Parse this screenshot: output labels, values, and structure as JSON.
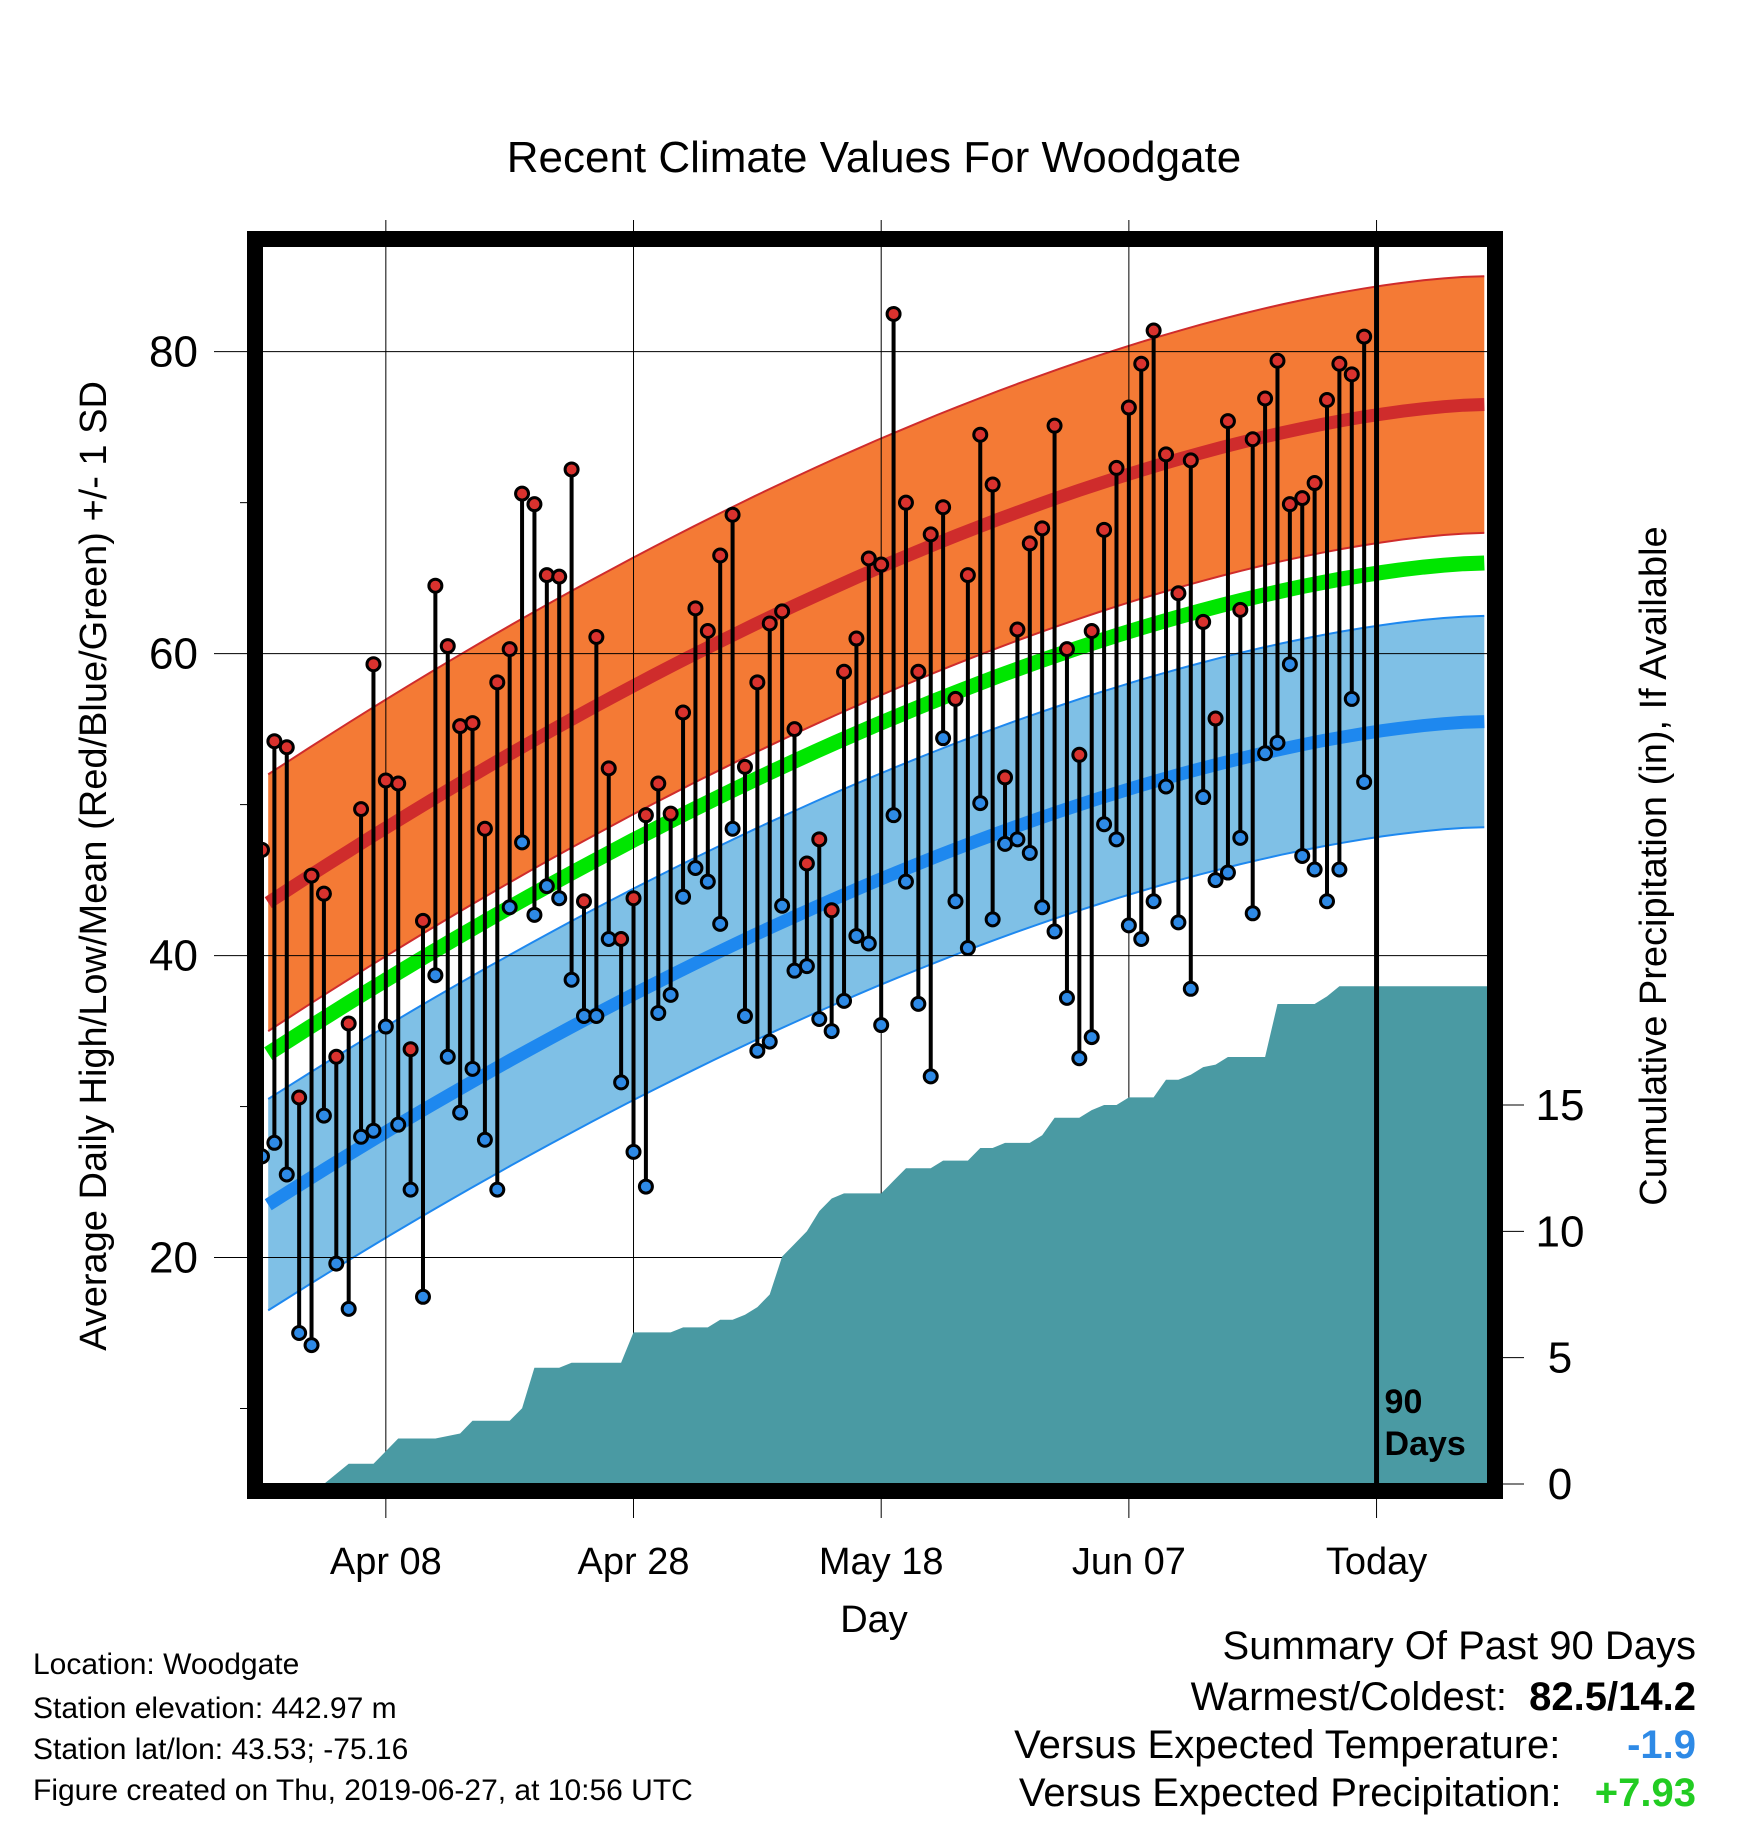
{
  "chart_data": {
    "type": "line",
    "title": "Recent Climate Values For Woodgate",
    "xlabel": "Day",
    "ylabel_left": "Average Daily High/Low/Mean (Red/Blue/Green) +/- 1 SD",
    "ylabel_right": "Cumulative Precipitation (in), If Available",
    "x_tick_labels": [
      "Apr 08",
      "Apr 28",
      "May 18",
      "Jun 07",
      "Today"
    ],
    "x_tick_days": [
      10,
      30,
      50,
      70,
      90
    ],
    "xlim": [
      0,
      99
    ],
    "ylim_left": [
      5,
      87
    ],
    "y_ticks_left": [
      20,
      40,
      60,
      80
    ],
    "ylim_right": [
      0,
      49
    ],
    "y_ticks_right": [
      0,
      5,
      10,
      15
    ],
    "grid": true,
    "today_marker": {
      "day": 90,
      "label_line1": "90",
      "label_line2": "Days"
    },
    "normal_high": {
      "start": 43.5,
      "end": 76.5,
      "sd": 8.5,
      "color": "#cf2c2c",
      "band_color": "#f47a35"
    },
    "normal_low": {
      "start": 23.5,
      "end": 55.5,
      "sd": 7,
      "color": "#1e88ef",
      "band_color": "#7fc0e6"
    },
    "normal_mean": {
      "start": 33.5,
      "end": 66,
      "color": "#00e600"
    },
    "daily_highs": [
      47.0,
      54.2,
      53.8,
      30.6,
      45.3,
      44.1,
      33.3,
      35.5,
      49.7,
      59.3,
      51.6,
      51.4,
      33.8,
      42.3,
      64.5,
      60.5,
      55.2,
      55.4,
      48.4,
      58.1,
      60.3,
      70.6,
      69.9,
      65.2,
      65.1,
      72.2,
      43.6,
      61.1,
      52.4,
      41.1,
      43.8,
      49.3,
      51.4,
      49.4,
      56.1,
      63.0,
      61.5,
      66.5,
      69.2,
      52.5,
      58.1,
      62.0,
      62.8,
      55.0,
      46.1,
      47.7,
      43.0,
      58.8,
      61.0,
      66.3,
      65.9,
      82.5,
      70.0,
      58.8,
      67.9,
      69.7,
      57.0,
      65.2,
      74.5,
      71.2,
      51.8,
      61.6,
      67.3,
      68.3,
      75.1,
      60.3,
      53.3,
      61.5,
      68.2,
      72.3,
      76.3,
      79.2,
      81.4,
      73.2,
      64.0,
      72.8,
      62.1,
      55.7,
      75.4,
      62.9,
      74.2,
      76.9,
      79.4,
      69.9,
      70.3,
      71.3,
      76.8,
      79.2,
      78.5,
      81.0
    ],
    "daily_lows": [
      26.7,
      27.6,
      25.5,
      15.0,
      14.2,
      29.4,
      19.6,
      16.6,
      28.0,
      28.4,
      35.3,
      28.8,
      24.5,
      17.4,
      38.7,
      33.3,
      29.6,
      32.5,
      27.8,
      24.5,
      43.2,
      47.5,
      42.7,
      44.6,
      43.8,
      38.4,
      36.0,
      36.0,
      41.1,
      31.6,
      27.0,
      24.7,
      36.2,
      37.4,
      43.9,
      45.8,
      44.9,
      42.1,
      48.4,
      36.0,
      33.7,
      34.3,
      43.3,
      39.0,
      39.3,
      35.8,
      35.0,
      37.0,
      41.3,
      40.8,
      35.4,
      49.3,
      44.9,
      36.8,
      32.0,
      54.4,
      43.6,
      40.5,
      50.1,
      42.4,
      47.4,
      47.7,
      46.8,
      43.2,
      41.6,
      37.2,
      33.2,
      34.6,
      48.7,
      47.7,
      42.0,
      41.1,
      43.6,
      51.2,
      42.2,
      37.8,
      50.5,
      45.0,
      45.5,
      47.8,
      42.8,
      53.4,
      54.1,
      59.3,
      46.6,
      45.7,
      43.6,
      45.7,
      57.0,
      51.5
    ],
    "cumulative_precip": [
      0.0,
      0.0,
      0.0,
      0.0,
      0.0,
      0.0,
      0.4,
      0.8,
      0.8,
      0.8,
      1.3,
      1.8,
      1.8,
      1.8,
      1.8,
      1.9,
      2.0,
      2.5,
      2.5,
      2.5,
      2.5,
      3.0,
      4.6,
      4.6,
      4.6,
      4.8,
      4.8,
      4.8,
      4.8,
      4.8,
      6.0,
      6.0,
      6.0,
      6.0,
      6.2,
      6.2,
      6.2,
      6.5,
      6.5,
      6.7,
      7.0,
      7.5,
      9.0,
      9.5,
      10.0,
      10.8,
      11.3,
      11.5,
      11.5,
      11.5,
      11.5,
      12.0,
      12.5,
      12.5,
      12.5,
      12.8,
      12.8,
      12.8,
      13.3,
      13.3,
      13.5,
      13.5,
      13.5,
      13.8,
      14.5,
      14.5,
      14.5,
      14.8,
      15.0,
      15.0,
      15.3,
      15.3,
      15.3,
      16.0,
      16.0,
      16.2,
      16.5,
      16.6,
      16.9,
      16.9,
      16.9,
      16.9,
      19.0,
      19.0,
      19.0,
      19.0,
      19.3,
      19.7,
      19.7,
      19.7,
      19.7,
      19.7,
      19.7,
      19.7,
      19.7,
      19.7,
      19.7,
      19.7,
      19.7,
      19.7
    ],
    "precip_color": "#4a9aa3",
    "dot_high_color": "#d9322e",
    "dot_low_color": "#2e8ae6"
  },
  "footer": {
    "location": "Location: Woodgate",
    "elevation": "Station elevation: 442.97 m",
    "latlon": "Station lat/lon: 43.53; -75.16",
    "created": "Figure created on Thu, 2019-06-27, at 10:56 UTC"
  },
  "summary": {
    "title": "Summary Of Past 90 Days",
    "warmest_label": "Warmest/Coldest:",
    "warmest_value": "82.5/14.2",
    "temp_label": "Versus Expected Temperature:",
    "temp_value": "-1.9",
    "temp_color": "#2e8ae6",
    "precip_label": "Versus Expected Precipitation:",
    "precip_value": "+7.93",
    "precip_color": "#22cc22"
  }
}
